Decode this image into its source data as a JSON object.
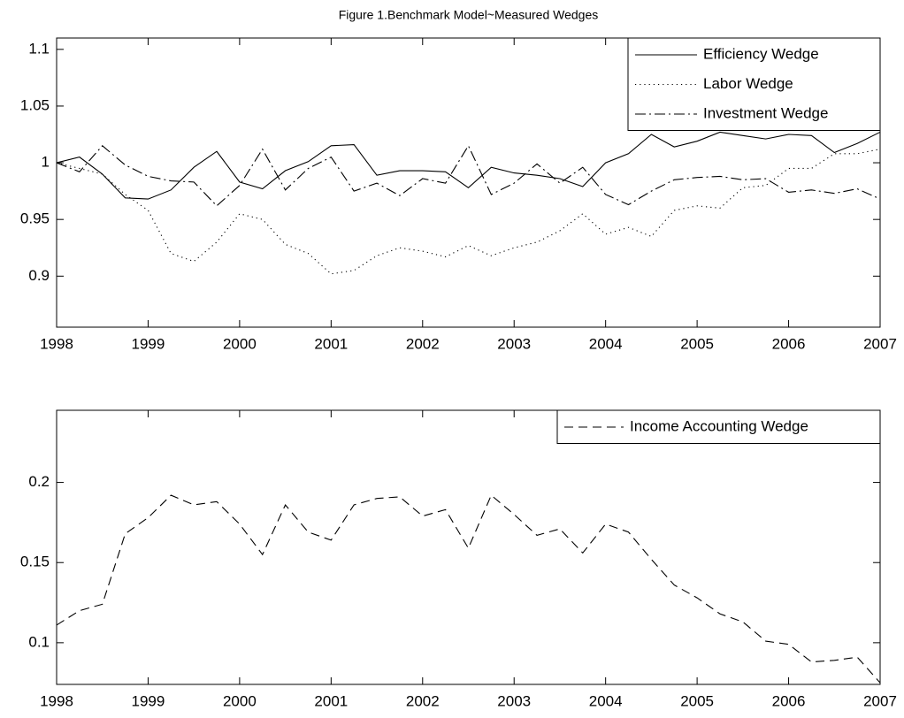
{
  "chart_data": [
    {
      "type": "line",
      "title": "Figure 1.Benchmark Model~Measured Wedges",
      "x": [
        1998,
        1998.25,
        1998.5,
        1998.75,
        1999,
        1999.25,
        1999.5,
        1999.75,
        2000,
        2000.25,
        2000.5,
        2000.75,
        2001,
        2001.25,
        2001.5,
        2001.75,
        2002,
        2002.25,
        2002.5,
        2002.75,
        2003,
        2003.25,
        2003.5,
        2003.75,
        2004,
        2004.25,
        2004.5,
        2004.75,
        2005,
        2005.25,
        2005.5,
        2005.75,
        2006,
        2006.25,
        2006.5,
        2006.75,
        2007
      ],
      "series": [
        {
          "name": "Efficiency Wedge",
          "color": "#000000",
          "dash": "solid",
          "values": [
            1.0,
            1.005,
            0.99,
            0.969,
            0.968,
            0.976,
            0.996,
            1.01,
            0.983,
            0.977,
            0.993,
            1.001,
            1.015,
            1.016,
            0.989,
            0.993,
            0.993,
            0.992,
            0.978,
            0.996,
            0.991,
            0.989,
            0.986,
            0.979,
            1.0,
            1.008,
            1.025,
            1.014,
            1.019,
            1.027,
            1.024,
            1.021,
            1.025,
            1.024,
            1.009,
            1.017,
            1.027
          ]
        },
        {
          "name": "Labor Wedge",
          "color": "#000000",
          "dash": "dotted",
          "values": [
            1.0,
            0.995,
            0.99,
            0.972,
            0.958,
            0.92,
            0.913,
            0.93,
            0.955,
            0.95,
            0.928,
            0.92,
            0.902,
            0.905,
            0.918,
            0.925,
            0.922,
            0.917,
            0.927,
            0.918,
            0.925,
            0.93,
            0.94,
            0.955,
            0.937,
            0.943,
            0.935,
            0.958,
            0.962,
            0.96,
            0.978,
            0.98,
            0.995,
            0.995,
            1.008,
            1.008,
            1.012
          ]
        },
        {
          "name": "Investment Wedge",
          "color": "#000000",
          "dash": "dashdot",
          "values": [
            1.0,
            0.992,
            1.015,
            0.998,
            0.988,
            0.984,
            0.983,
            0.962,
            0.98,
            1.012,
            0.976,
            0.995,
            1.005,
            0.975,
            0.982,
            0.971,
            0.986,
            0.982,
            1.015,
            0.972,
            0.982,
            0.999,
            0.982,
            0.996,
            0.972,
            0.963,
            0.975,
            0.985,
            0.987,
            0.988,
            0.985,
            0.986,
            0.974,
            0.976,
            0.973,
            0.977,
            0.968
          ]
        }
      ],
      "xlim": [
        1998,
        2007
      ],
      "xticks": [
        1998,
        1999,
        2000,
        2001,
        2002,
        2003,
        2004,
        2005,
        2006,
        2007
      ],
      "ylim": [
        0.855,
        1.11
      ],
      "yticks": [
        0.9,
        0.95,
        1,
        1.05,
        1.1
      ],
      "grid": false,
      "legend": "upper-right"
    },
    {
      "type": "line",
      "x": [
        1998,
        1998.25,
        1998.5,
        1998.75,
        1999,
        1999.25,
        1999.5,
        1999.75,
        2000,
        2000.25,
        2000.5,
        2000.75,
        2001,
        2001.25,
        2001.5,
        2001.75,
        2002,
        2002.25,
        2002.5,
        2002.75,
        2003,
        2003.25,
        2003.5,
        2003.75,
        2004,
        2004.25,
        2004.5,
        2004.75,
        2005,
        2005.25,
        2005.5,
        2005.75,
        2006,
        2006.25,
        2006.5,
        2006.75,
        2007
      ],
      "series": [
        {
          "name": "Income Accounting Wedge",
          "color": "#000000",
          "dash": "dashed",
          "values": [
            0.111,
            0.12,
            0.124,
            0.168,
            0.178,
            0.192,
            0.186,
            0.188,
            0.174,
            0.155,
            0.186,
            0.169,
            0.164,
            0.186,
            0.19,
            0.191,
            0.179,
            0.183,
            0.159,
            0.192,
            0.18,
            0.167,
            0.171,
            0.156,
            0.174,
            0.169,
            0.152,
            0.136,
            0.128,
            0.118,
            0.113,
            0.101,
            0.099,
            0.088,
            0.089,
            0.091,
            0.075
          ]
        }
      ],
      "xlim": [
        1998,
        2007
      ],
      "xticks": [
        1998,
        1999,
        2000,
        2001,
        2002,
        2003,
        2004,
        2005,
        2006,
        2007
      ],
      "ylim": [
        0.074,
        0.245
      ],
      "yticks": [
        0.1,
        0.15,
        0.2
      ],
      "grid": false,
      "legend": "upper-right"
    }
  ]
}
